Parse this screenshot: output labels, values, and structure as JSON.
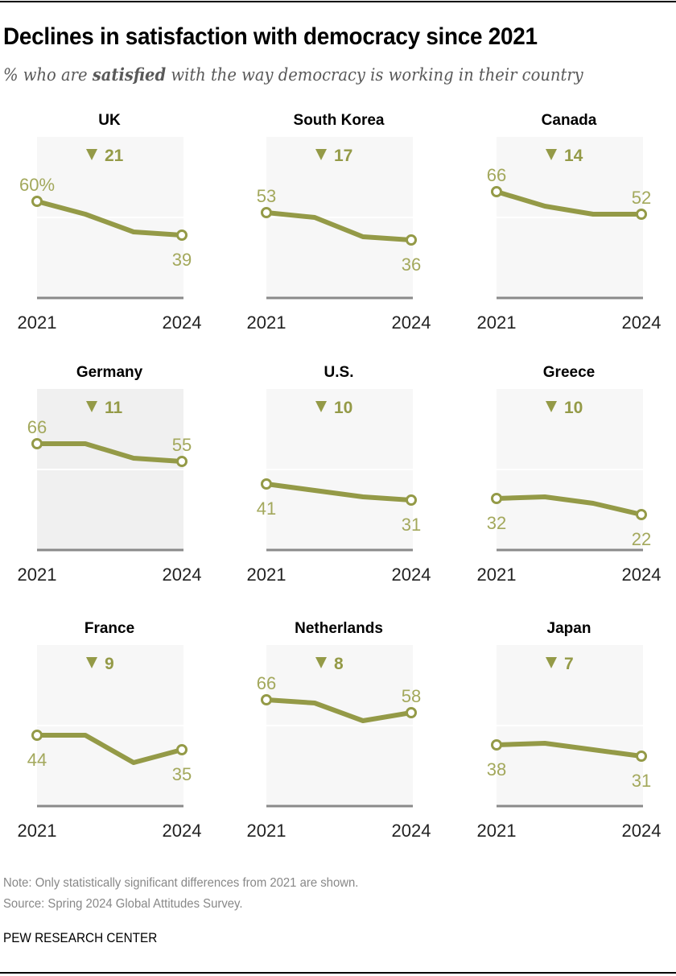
{
  "header": {
    "title": "Declines in satisfaction with democracy since 2021",
    "subtitle_pre": "% who are ",
    "subtitle_bold": "satisfied",
    "subtitle_post": " with the way democracy is working in their country"
  },
  "footer": {
    "note": "Note: Only statistically significant differences from 2021 are shown.",
    "source": "Source: Spring 2024 Global Attitudes Survey.",
    "brand": "PEW RESEARCH CENTER"
  },
  "colors": {
    "line": "#949A47",
    "label": "#A3A85C",
    "panel_bg": "#F7F7F7",
    "panel_bg_highlight": "#F0F0F0",
    "baseline": "#8A8A8A",
    "gridline": "#FFFFFF"
  },
  "chart_data": {
    "type": "line",
    "title": "Declines in satisfaction with democracy since 2021",
    "subtitle": "% who are satisfied with the way democracy is working in their country",
    "x": [
      2021,
      2022,
      2023,
      2024
    ],
    "x_tick_labels": [
      "2021",
      "2024"
    ],
    "ylim": [
      0,
      100
    ],
    "gridlines": [
      50
    ],
    "delta_symbol": "▼",
    "panels": [
      {
        "country": "UK",
        "values": [
          60,
          52,
          41,
          39
        ],
        "labels": [
          "60%",
          "39"
        ],
        "delta": "21",
        "highlight": false
      },
      {
        "country": "South Korea",
        "values": [
          53,
          50,
          38,
          36
        ],
        "labels": [
          "53",
          "36"
        ],
        "delta": "17",
        "highlight": false
      },
      {
        "country": "Canada",
        "values": [
          66,
          57,
          52,
          52
        ],
        "labels": [
          "66",
          "52"
        ],
        "delta": "14",
        "highlight": false
      },
      {
        "country": "Germany",
        "values": [
          66,
          66,
          57,
          55
        ],
        "labels": [
          "66",
          "55"
        ],
        "delta": "11",
        "highlight": true
      },
      {
        "country": "U.S.",
        "values": [
          41,
          37,
          33,
          31
        ],
        "labels": [
          "41",
          "31"
        ],
        "delta": "10",
        "highlight": false
      },
      {
        "country": "Greece",
        "values": [
          32,
          33,
          29,
          22
        ],
        "labels": [
          "32",
          "22"
        ],
        "delta": "10",
        "highlight": false
      },
      {
        "country": "France",
        "values": [
          44,
          44,
          27,
          35
        ],
        "labels": [
          "44",
          "35"
        ],
        "delta": "9",
        "highlight": false
      },
      {
        "country": "Netherlands",
        "values": [
          66,
          64,
          53,
          58
        ],
        "labels": [
          "66",
          "58"
        ],
        "delta": "8",
        "highlight": false
      },
      {
        "country": "Japan",
        "values": [
          38,
          39,
          35,
          31
        ],
        "labels": [
          "38",
          "31"
        ],
        "delta": "7",
        "highlight": false
      }
    ]
  }
}
